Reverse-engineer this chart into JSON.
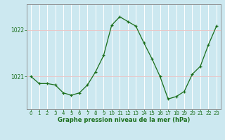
{
  "hours": [
    0,
    1,
    2,
    3,
    4,
    5,
    6,
    7,
    8,
    9,
    10,
    11,
    12,
    13,
    14,
    15,
    16,
    17,
    18,
    19,
    20,
    21,
    22,
    23
  ],
  "pressure": [
    1021.0,
    1020.85,
    1020.85,
    1020.82,
    1020.65,
    1020.6,
    1020.65,
    1020.82,
    1021.1,
    1021.45,
    1022.1,
    1022.28,
    1022.18,
    1022.08,
    1021.72,
    1021.38,
    1021.0,
    1020.52,
    1020.57,
    1020.68,
    1021.05,
    1021.22,
    1021.68,
    1022.08
  ],
  "line_color": "#1a6e1a",
  "marker_color": "#1a6e1a",
  "bg_color": "#cce8f0",
  "grid_color": "#ffffff",
  "hgrid_color": "#e8c8c8",
  "border_color": "#888888",
  "xlabel": "Graphe pression niveau de la mer (hPa)",
  "xlabel_color": "#1a6e1a",
  "tick_color": "#1a6e1a",
  "ylim": [
    1020.3,
    1022.55
  ],
  "yticks": [
    1021,
    1022
  ],
  "xlim": [
    -0.5,
    23.5
  ],
  "figsize": [
    3.2,
    2.0
  ],
  "dpi": 100
}
